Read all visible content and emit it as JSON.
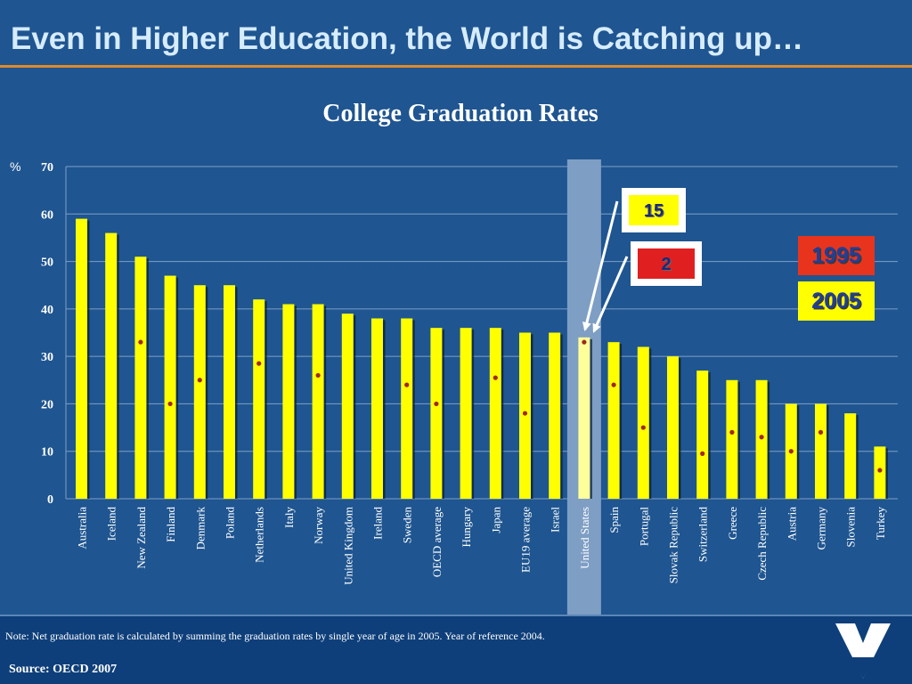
{
  "slide": {
    "title": "Even in Higher Education, the World is Catching up…",
    "note": "Note: Net graduation rate is calculated by summing the graduation rates by single year of age in 2005.  Year of reference 2004.",
    "source": "Source: OECD 2007"
  },
  "colors": {
    "background": "#1f5590",
    "bar_2005": "#ffff00",
    "marker_1995": "#a0281e",
    "highlight": "#9fb7d6",
    "accent_rule": "#e08a2c"
  },
  "chart_data": {
    "type": "bar",
    "title": "College Graduation Rates",
    "ylabel": "%",
    "ylim": [
      0,
      70
    ],
    "yticks": [
      0,
      10,
      20,
      30,
      40,
      50,
      60,
      70
    ],
    "grid": true,
    "highlight_category": "United States",
    "categories": [
      "Australia",
      "Iceland",
      "New Zealand",
      "Finland",
      "Denmark",
      "Poland",
      "Netherlands",
      "Italy",
      "Norway",
      "United Kingdom",
      "Ireland",
      "Sweden",
      "OECD average",
      "Hungary",
      "Japan",
      "EU19 average",
      "Israel",
      "United States",
      "Spain",
      "Portugal",
      "Slovak Republic",
      "Switzerland",
      "Greece",
      "Czech Republic",
      "Austria",
      "Germany",
      "Slovenia",
      "Turkey"
    ],
    "series": [
      {
        "name": "2005",
        "values": [
          59,
          56,
          51,
          47,
          45,
          45,
          42,
          41,
          41,
          39,
          38,
          38,
          36,
          36,
          36,
          35,
          35,
          34,
          33,
          32,
          30,
          27,
          25,
          25,
          20,
          20,
          18,
          11
        ]
      },
      {
        "name": "1995",
        "values": [
          null,
          null,
          33,
          20,
          25,
          null,
          28.5,
          null,
          26,
          null,
          null,
          24,
          20,
          null,
          25.5,
          18,
          null,
          33,
          24,
          15,
          null,
          9.5,
          14,
          13,
          10,
          14,
          null,
          6
        ]
      }
    ],
    "legend": [
      {
        "label": "1995",
        "color": "#e8341c"
      },
      {
        "label": "2005",
        "color": "#ffff00"
      }
    ],
    "annotations": [
      {
        "label": "15",
        "color": "#ffff00",
        "target": "United States"
      },
      {
        "label": "2",
        "color": "#e02020",
        "target": "United States"
      }
    ]
  }
}
